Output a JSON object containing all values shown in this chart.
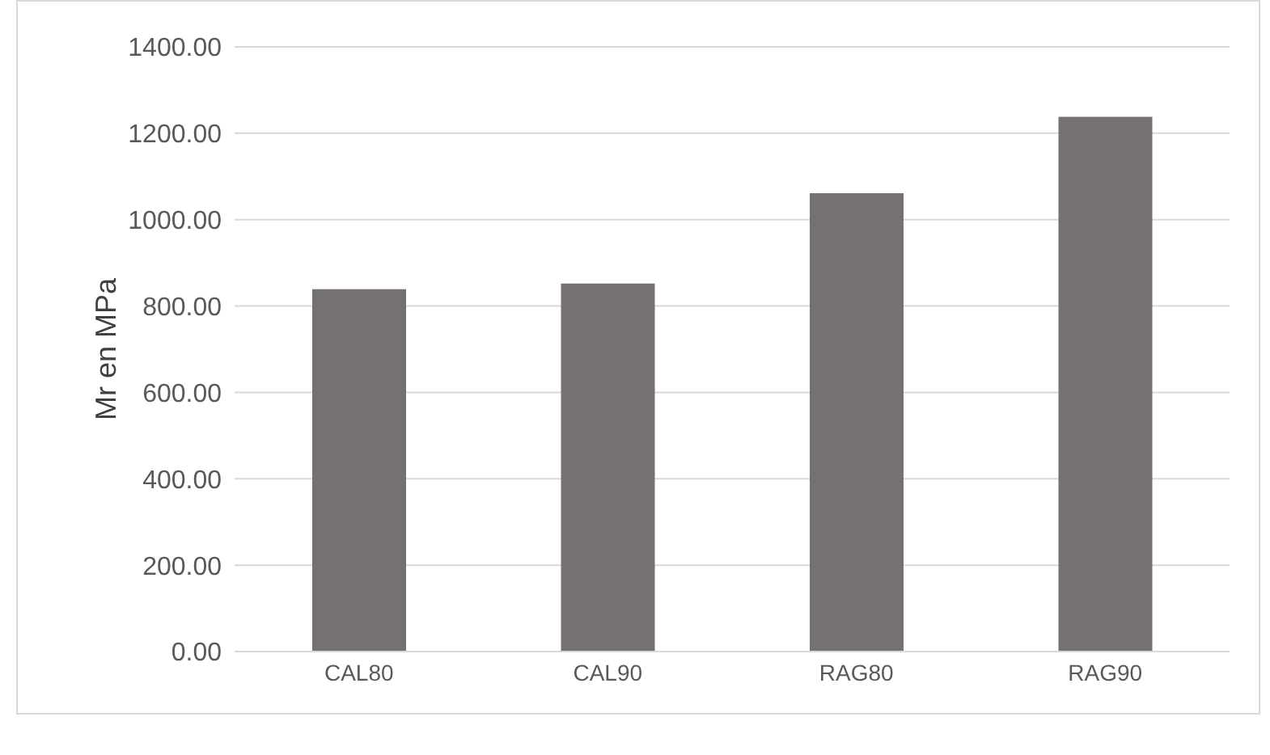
{
  "chart_data": {
    "type": "bar",
    "ylabel": "Mr en MPa",
    "categories": [
      "CAL80",
      "CAL90",
      "RAG80",
      "RAG90"
    ],
    "values": [
      839,
      852,
      1061,
      1238
    ],
    "color": "#767171",
    "ylim": [
      0,
      1400
    ],
    "yticks": [
      {
        "value": 0,
        "label": "0.00"
      },
      {
        "value": 200,
        "label": "200.00"
      },
      {
        "value": 400,
        "label": "400.00"
      },
      {
        "value": 600,
        "label": "600.00"
      },
      {
        "value": 800,
        "label": "800.00"
      },
      {
        "value": 1000,
        "label": "1000.00"
      },
      {
        "value": 1200,
        "label": "1200.00"
      },
      {
        "value": 1400,
        "label": "1400.00"
      }
    ],
    "grid": "y",
    "legend": false
  }
}
